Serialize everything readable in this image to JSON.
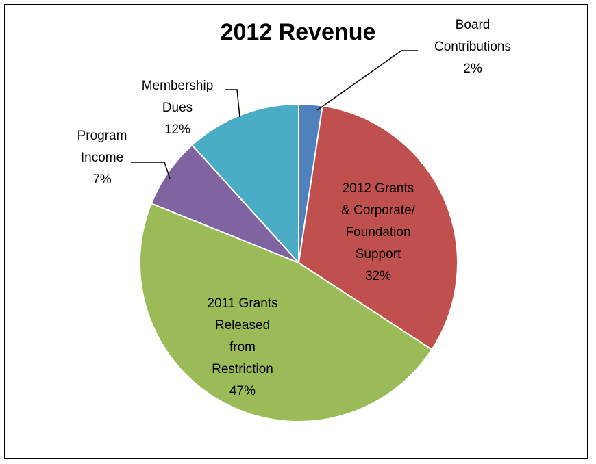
{
  "chart_data": {
    "type": "pie",
    "title": "2012 Revenue",
    "slices": [
      {
        "label": [
          "Board",
          "Contributions"
        ],
        "pct_text": "2%",
        "value": 2.4,
        "color": "#4F81BD"
      },
      {
        "label": [
          "2012 Grants",
          "& Corporate/",
          "Foundation",
          "Support"
        ],
        "pct_text": "32%",
        "value": 31.8,
        "color": "#C0504D"
      },
      {
        "label": [
          "2011 Grants",
          "Released",
          "from",
          "Restriction"
        ],
        "pct_text": "47%",
        "value": 46.9,
        "color": "#9BBB59"
      },
      {
        "label": [
          "Program",
          "Income"
        ],
        "pct_text": "7%",
        "value": 7.2,
        "color": "#8064A2"
      },
      {
        "label": [
          "Membership",
          "Dues"
        ],
        "pct_text": "12%",
        "value": 11.7,
        "color": "#4BACC6"
      }
    ]
  }
}
